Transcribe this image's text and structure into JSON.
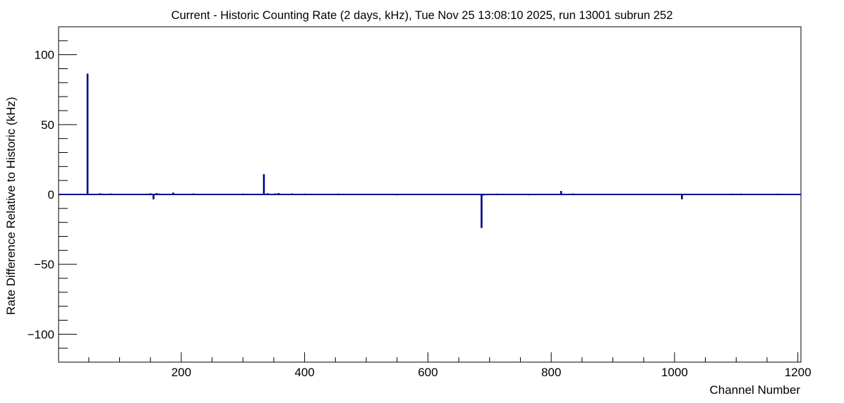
{
  "chart_data": {
    "type": "bar",
    "title": "Current - Historic Counting Rate (2 days, kHz), Tue Nov 25 13:08:10 2025, run 13001 subrun 252",
    "xlabel": "Channel Number",
    "ylabel": "Rate Difference Relative to Historic (kHz)",
    "xlim": [
      1,
      1205
    ],
    "ylim": [
      -120,
      120
    ],
    "x_major_ticks": [
      200,
      400,
      600,
      800,
      1000,
      1200
    ],
    "x_tick_labels": [
      "200",
      "400",
      "600",
      "800",
      "1000",
      "1200"
    ],
    "y_major_ticks": [
      -100,
      -50,
      0,
      50,
      100
    ],
    "y_tick_labels": [
      "−100",
      "−50",
      "0",
      "50",
      "100"
    ],
    "grid": false,
    "legend": "none",
    "series": [
      {
        "x": [
          40,
          48,
          68,
          72,
          86,
          132,
          150,
          155,
          160,
          165,
          187,
          220,
          290,
          300,
          334,
          340,
          345,
          352,
          358,
          364,
          380,
          400,
          435,
          455,
          550,
          568,
          687,
          690,
          712,
          764,
          816,
          835,
          1012,
          1075,
          1092,
          1108,
          1167
        ],
        "values": [
          0.5,
          86.5,
          0.8,
          0.6,
          0.7,
          0.5,
          0.8,
          -3.5,
          1.0,
          0.6,
          1.3,
          0.7,
          0.5,
          0.6,
          14.5,
          0.9,
          0.5,
          0.7,
          1.0,
          0.5,
          0.7,
          0.6,
          0.5,
          0.6,
          -0.6,
          0.5,
          -24.0,
          -0.7,
          0.6,
          -0.6,
          2.5,
          0.7,
          -3.5,
          0.5,
          0.6,
          0.6,
          0.6
        ]
      }
    ],
    "colors": {
      "series": "#00008b",
      "axis": "#000000",
      "background": "#ffffff"
    }
  }
}
